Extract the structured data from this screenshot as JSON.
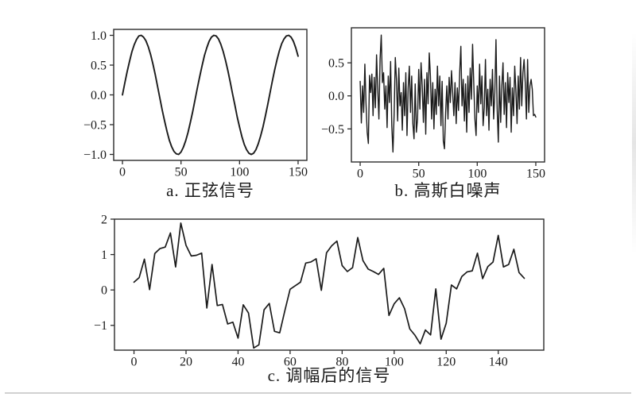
{
  "page": {
    "background": "#ffffff",
    "line_color": "#1b1b1b",
    "frame_color": "#2b2b2b",
    "tick_text_color": "#1a1a1a"
  },
  "chart_data": [
    {
      "id": "a",
      "type": "line",
      "caption": "a. 正弦信号",
      "x_start": 0,
      "x_step": 2,
      "xlim": [
        -7.5,
        157.5
      ],
      "ylim": [
        -1.1,
        1.1
      ],
      "xticks": [
        0,
        50,
        100,
        150
      ],
      "xtick_labels": [
        "0",
        "50",
        "100",
        "150"
      ],
      "yticks": [
        1.0,
        0.5,
        0.0,
        -0.5,
        -1.0
      ],
      "ytick_labels": [
        "1.0",
        "0.5",
        "0.0",
        "−0.5",
        "−1.0"
      ],
      "grid": false,
      "legend": null,
      "line_width": 1.9,
      "values": [
        0.0,
        0.2,
        0.39,
        0.56,
        0.72,
        0.84,
        0.93,
        0.99,
        1.0,
        0.97,
        0.91,
        0.81,
        0.68,
        0.52,
        0.34,
        0.14,
        -0.06,
        -0.26,
        -0.44,
        -0.61,
        -0.76,
        -0.87,
        -0.95,
        -0.99,
        -1.0,
        -0.96,
        -0.88,
        -0.77,
        -0.63,
        -0.46,
        -0.28,
        -0.08,
        0.12,
        0.31,
        0.49,
        0.66,
        0.79,
        0.9,
        0.97,
        1.0,
        0.99,
        0.94,
        0.85,
        0.73,
        0.58,
        0.41,
        0.22,
        0.02,
        -0.17,
        -0.37,
        -0.54,
        -0.7,
        -0.83,
        -0.92,
        -0.98,
        -1.0,
        -0.98,
        -0.92,
        -0.82,
        -0.69,
        -0.54,
        -0.36,
        -0.17,
        0.03,
        0.23,
        0.42,
        0.59,
        0.74,
        0.86,
        0.94,
        0.99,
        1.0,
        0.97,
        0.9,
        0.79,
        0.65
      ]
    },
    {
      "id": "b",
      "type": "line",
      "caption": "b. 高斯白噪声",
      "x_start": 0,
      "x_step": 1,
      "xlim": [
        -7.5,
        157.5
      ],
      "ylim": [
        -1.0,
        1.03
      ],
      "xticks": [
        0,
        50,
        100,
        150
      ],
      "xtick_labels": [
        "0",
        "50",
        "100",
        "150"
      ],
      "yticks": [
        0.5,
        0.0,
        -0.5
      ],
      "ytick_labels": [
        "0.5",
        "0.0",
        "−0.5"
      ],
      "grid": false,
      "legend": null,
      "line_width": 1.4,
      "values": [
        0.22,
        -0.41,
        0.15,
        -0.25,
        0.48,
        -0.12,
        -0.55,
        -0.72,
        0.31,
        0.05,
        0.33,
        -0.3,
        0.28,
        -0.18,
        0.62,
        0.1,
        -0.35,
        0.55,
        0.92,
        0.2,
        0.35,
        -0.2,
        0.15,
        -0.48,
        0.3,
        -0.1,
        0.52,
        -0.45,
        -0.85,
        -0.28,
        0.58,
        0.25,
        -0.38,
        0.42,
        -0.15,
        0.05,
        -0.52,
        0.2,
        -0.3,
        0.35,
        -0.6,
        0.12,
        0.45,
        -0.25,
        0.3,
        -0.42,
        -0.65,
        0.18,
        -0.55,
        -0.35,
        0.4,
        -0.2,
        0.5,
        0.15,
        -0.4,
        0.25,
        -0.58,
        0.35,
        -0.12,
        0.65,
        0.3,
        -0.35,
        0.2,
        -0.5,
        0.1,
        -0.28,
        0.45,
        -0.15,
        0.3,
        -0.45,
        0.22,
        -0.68,
        -0.8,
        -0.25,
        0.15,
        -0.35,
        0.28,
        -0.1,
        0.38,
        0.05,
        -0.3,
        0.2,
        -0.42,
        0.12,
        -0.22,
        0.35,
        0.75,
        -0.15,
        0.25,
        -0.38,
        0.18,
        -0.55,
        0.3,
        -0.25,
        0.42,
        -0.05,
        0.78,
        0.2,
        -0.35,
        -0.6,
        0.15,
        -0.25,
        0.48,
        -0.12,
        0.3,
        -0.45,
        -0.18,
        0.55,
        -0.3,
        0.1,
        -0.52,
        0.25,
        -0.15,
        0.4,
        -0.35,
        0.05,
        0.85,
        -0.2,
        -0.7,
        0.3,
        -0.4,
        0.15,
        0.5,
        -0.28,
        0.2,
        -0.48,
        0.35,
        -0.1,
        0.28,
        -0.55,
        0.12,
        -0.3,
        0.45,
        0.08,
        -0.42,
        0.3,
        -0.2,
        0.58,
        -0.15,
        0.35,
        0.55,
        0.2,
        -0.35,
        0.55,
        -0.25,
        0.15,
        0.25,
        0.1,
        -0.3,
        -0.28,
        -0.32
      ]
    },
    {
      "id": "c",
      "type": "line",
      "caption": "c. 调幅后的信号",
      "x_start": 0,
      "x_step": 2,
      "xlim": [
        -7.5,
        157.5
      ],
      "ylim": [
        -1.7,
        2.0
      ],
      "xticks": [
        0,
        20,
        40,
        60,
        80,
        100,
        120,
        140
      ],
      "xtick_labels": [
        "0",
        "20",
        "40",
        "60",
        "80",
        "100",
        "120",
        "140"
      ],
      "yticks": [
        2,
        1,
        0,
        -1
      ],
      "ytick_labels": [
        "2",
        "1",
        "0",
        "−1"
      ],
      "grid": false,
      "legend": null,
      "line_width": 1.7,
      "values": [
        0.22,
        0.35,
        0.87,
        0.01,
        1.03,
        1.17,
        1.21,
        1.61,
        0.65,
        1.89,
        1.26,
        0.96,
        0.98,
        1.04,
        -0.51,
        0.72,
        -0.44,
        -0.41,
        -0.96,
        -0.91,
        -1.36,
        -0.42,
        -0.65,
        -1.64,
        -1.55,
        -0.56,
        -0.38,
        -1.17,
        -1.21,
        -0.58,
        0.02,
        0.12,
        0.22,
        0.76,
        0.79,
        0.88,
        -0.01,
        1.05,
        1.25,
        1.38,
        0.69,
        0.52,
        0.63,
        1.48,
        0.83,
        0.59,
        0.52,
        0.44,
        0.61,
        -0.72,
        -0.39,
        -0.22,
        -0.53,
        -1.1,
        -1.28,
        -1.52,
        -1.13,
        -1.27,
        0.03,
        -1.39,
        -0.94,
        0.14,
        0.03,
        0.38,
        0.51,
        0.54,
        1.04,
        0.32,
        0.66,
        0.79,
        1.54,
        0.65,
        0.72,
        1.15,
        0.49,
        0.33
      ]
    }
  ]
}
